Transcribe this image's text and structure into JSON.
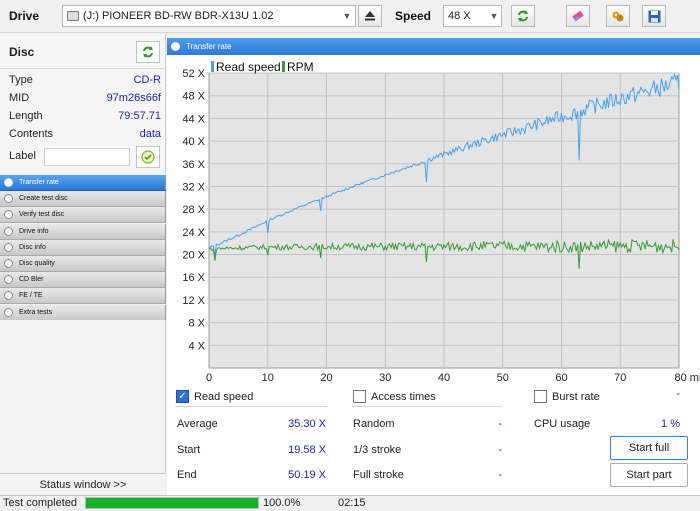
{
  "toolbar": {
    "drive_label": "Drive",
    "drive_value": "(J:)  PIONEER BD-RW   BDR-X13U 1.02",
    "speed_label": "Speed",
    "speed_value": "48 X"
  },
  "disc": {
    "title": "Disc",
    "rows": [
      {
        "label": "Type",
        "value": "CD-R"
      },
      {
        "label": "MID",
        "value": "97m26s66f"
      },
      {
        "label": "Length",
        "value": "79:57.71"
      },
      {
        "label": "Contents",
        "value": "data"
      }
    ],
    "label_field_label": "Label",
    "label_field_value": ""
  },
  "nav": {
    "items": [
      {
        "label": "Transfer rate",
        "active": true
      },
      {
        "label": "Create test disc",
        "active": false
      },
      {
        "label": "Verify test disc",
        "active": false
      },
      {
        "label": "Drive info",
        "active": false
      },
      {
        "label": "Disc info",
        "active": false
      },
      {
        "label": "Disc quality",
        "active": false
      },
      {
        "label": "CD Bler",
        "active": false
      },
      {
        "label": "FE / TE",
        "active": false
      },
      {
        "label": "Extra tests",
        "active": false
      }
    ],
    "status_window": "Status window >>"
  },
  "panel_title": "Transfer rate",
  "chart_data": {
    "type": "line",
    "xlabel": "",
    "x_unit": "min",
    "x_ticks": [
      "0",
      "10",
      "20",
      "30",
      "40",
      "50",
      "60",
      "70",
      "80 min"
    ],
    "y_ticks": [
      "4 X",
      "8 X",
      "12 X",
      "16 X",
      "20 X",
      "24 X",
      "28 X",
      "32 X",
      "36 X",
      "40 X",
      "44 X",
      "48 X",
      "52 X"
    ],
    "xlim": [
      0,
      80
    ],
    "ylim": [
      0,
      52
    ],
    "grid": true,
    "legend_position": "top-left",
    "series": [
      {
        "name": "Read speed",
        "color": "#4aa0f0",
        "x": [
          0,
          2,
          5,
          8,
          10,
          13,
          16,
          19,
          22,
          25,
          28,
          31,
          34,
          36,
          38,
          41,
          44,
          47,
          50,
          53,
          56,
          59,
          62,
          63,
          65,
          68,
          71,
          74,
          77,
          80
        ],
        "y": [
          21.2,
          22.0,
          23.4,
          24.9,
          26.0,
          27.3,
          28.6,
          29.8,
          31.0,
          32.2,
          33.3,
          34.4,
          35.5,
          36.2,
          37.0,
          38.0,
          39.1,
          40.1,
          41.1,
          42.0,
          43.0,
          44.0,
          44.9,
          45.2,
          46.0,
          46.9,
          47.8,
          48.6,
          49.5,
          50.2
        ]
      },
      {
        "name": "RPM",
        "color": "#3a9a3a",
        "x": [
          0,
          5,
          10,
          20,
          30,
          40,
          50,
          60,
          70,
          80
        ],
        "y": [
          21.0,
          21.2,
          21.3,
          21.4,
          21.4,
          21.4,
          21.5,
          21.4,
          21.5,
          21.5
        ]
      }
    ],
    "dips": [
      {
        "series": "Read speed",
        "x": 1,
        "y": 19.7
      },
      {
        "series": "Read speed",
        "x": 10,
        "y": 23.8
      },
      {
        "series": "Read speed",
        "x": 19,
        "y": 27.7
      },
      {
        "series": "Read speed",
        "x": 37,
        "y": 32.8
      },
      {
        "series": "Read speed",
        "x": 63,
        "y": 36.6
      },
      {
        "series": "RPM",
        "x": 1,
        "y": 18.9
      },
      {
        "series": "RPM",
        "x": 10,
        "y": 19.9
      },
      {
        "series": "RPM",
        "x": 19,
        "y": 19.4
      },
      {
        "series": "RPM",
        "x": 37,
        "y": 18.7
      },
      {
        "series": "RPM",
        "x": 63,
        "y": 17.5
      }
    ]
  },
  "options": {
    "read_speed": {
      "label": "Read speed",
      "checked": true
    },
    "access_times": {
      "label": "Access times",
      "checked": false
    },
    "burst_rate": {
      "label": "Burst rate",
      "checked": false
    }
  },
  "stats": {
    "average_label": "Average",
    "average_value": "35.30 X",
    "start_label": "Start",
    "start_value": "19.58 X",
    "end_label": "End",
    "end_value": "50.19 X",
    "random_label": "Random",
    "random_value": "-",
    "third_label": "1/3 stroke",
    "third_value": "-",
    "full_label": "Full stroke",
    "full_value": "-",
    "burst_value": "-",
    "cpu_label": "CPU usage",
    "cpu_value": "1 %"
  },
  "buttons": {
    "start_full": "Start full",
    "start_part": "Start part"
  },
  "statusbar": {
    "message": "Test completed",
    "progress": 1.0,
    "progress_text": "100.0%",
    "elapsed": "02:15"
  }
}
